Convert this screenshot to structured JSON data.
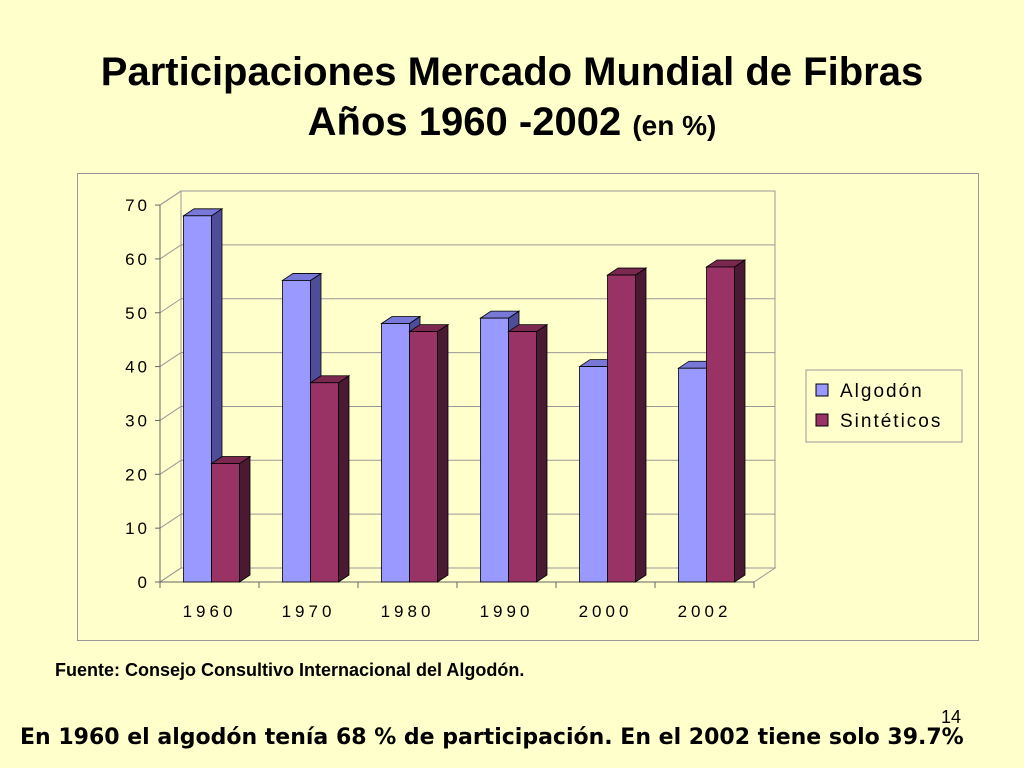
{
  "slide": {
    "title_line1": "Participaciones Mercado Mundial de Fibras",
    "title_line2_main": "Años 1960 -2002",
    "title_line2_small": "(en %)",
    "source": "Fuente: Consejo Consultivo Internacional del Algodón.",
    "page_number": "14",
    "footer_note": "En 1960 el algodón tenía 68 % de participación.  En el 2002 tiene solo 39.7%"
  },
  "chart_data": {
    "type": "bar",
    "style": "3d-clustered-column",
    "categories": [
      "1960",
      "1970",
      "1980",
      "1990",
      "2000",
      "2002"
    ],
    "series": [
      {
        "name": "Algodón",
        "values": [
          68,
          56,
          48,
          49,
          40,
          39.7
        ],
        "color": "#9999FF",
        "side_color": "#4D4D99",
        "top_color": "#7878D8"
      },
      {
        "name": "Sintéticos",
        "values": [
          22,
          37,
          46.5,
          46.5,
          57,
          58.5
        ],
        "color": "#993366",
        "side_color": "#4A1A33",
        "top_color": "#7A2850"
      }
    ],
    "y_ticks": [
      "0",
      "10",
      "20",
      "30",
      "40",
      "50",
      "60",
      "70"
    ],
    "ylim": [
      0,
      70
    ],
    "grid": true,
    "legend_position": "right",
    "colors": {
      "background": "#FFFFCC",
      "plot_wall": "#FFFFCC",
      "gridline": "#999999"
    }
  }
}
